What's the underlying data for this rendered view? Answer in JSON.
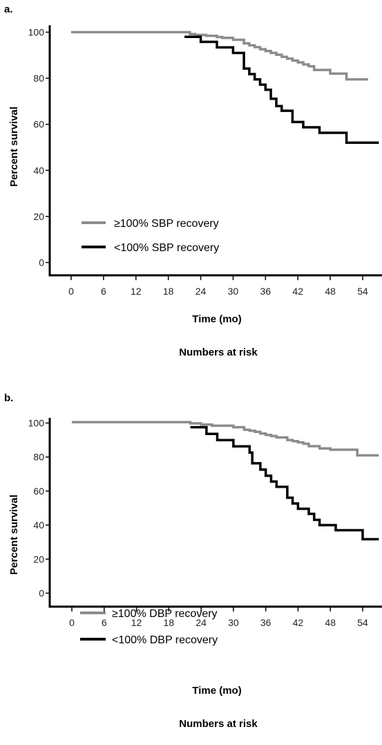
{
  "chart_data": [
    {
      "type": "line",
      "step": true,
      "panel_label": "a.",
      "xlabel": "Time (mo)",
      "ylabel": "Percent survival",
      "footer": "Numbers at risk",
      "xticks": [
        0,
        6,
        12,
        18,
        24,
        30,
        36,
        42,
        48,
        54
      ],
      "yticks": [
        0,
        20,
        40,
        60,
        80,
        100
      ],
      "xlim": [
        -6,
        57
      ],
      "ylim": [
        -5,
        103
      ],
      "grid": false,
      "legend_position": "bottom-left",
      "series": [
        {
          "name": "≥100% SBP recovery",
          "color": "#8c8c8c",
          "x": [
            0,
            22,
            23,
            25,
            27,
            28,
            30,
            32,
            33,
            34,
            35,
            36,
            37,
            38,
            39,
            40,
            41,
            42,
            43,
            44,
            45,
            48,
            51,
            55
          ],
          "y": [
            100,
            99.2,
            98.8,
            98.4,
            97.9,
            97.5,
            96.7,
            95.1,
            94.3,
            93.5,
            92.6,
            91.8,
            91.0,
            90.2,
            89.3,
            88.5,
            87.7,
            86.9,
            86.0,
            85.2,
            83.6,
            82.0,
            79.5,
            79.5
          ]
        },
        {
          "name": "<100% SBP recovery",
          "color": "#000000",
          "x": [
            21,
            22,
            24,
            27,
            30,
            32,
            33,
            34,
            35,
            36,
            37,
            38,
            39,
            40,
            41,
            43,
            44,
            46,
            49,
            51,
            57
          ],
          "y": [
            98,
            98,
            95.8,
            93.4,
            91.0,
            84.2,
            81.8,
            79.5,
            77.2,
            75.0,
            71.1,
            67.9,
            65.9,
            65.9,
            61.0,
            58.7,
            58.7,
            56.3,
            56.3,
            52.0,
            52.0
          ]
        }
      ]
    },
    {
      "type": "line",
      "step": true,
      "panel_label": "b.",
      "xlabel": "Time (mo)",
      "ylabel": "Percent survival",
      "footer": "Numbers at risk",
      "xticks": [
        0,
        6,
        12,
        18,
        24,
        30,
        36,
        42,
        48,
        54
      ],
      "yticks": [
        0,
        20,
        40,
        60,
        80,
        100
      ],
      "xlim": [
        -6,
        57
      ],
      "ylim": [
        -5,
        103
      ],
      "grid": false,
      "legend_position": "bottom-left",
      "series": [
        {
          "name": "≥100% DBP recovery",
          "color": "#8c8c8c",
          "x": [
            0,
            22,
            24,
            26,
            30,
            32,
            33,
            34,
            35,
            36,
            37,
            38,
            40,
            41,
            42,
            43,
            44,
            46,
            48,
            53,
            57
          ],
          "y": [
            100.5,
            99.8,
            99.1,
            98.4,
            97.5,
            96.0,
            95.4,
            94.8,
            93.8,
            93.0,
            92.3,
            91.5,
            90.0,
            89.3,
            88.6,
            87.8,
            86.4,
            85.1,
            84.3,
            81.0,
            81.0
          ]
        },
        {
          "name": "<100% DBP recovery",
          "color": "#000000",
          "x": [
            22,
            23,
            25,
            27,
            30,
            33,
            33.5,
            34,
            35,
            36,
            37,
            38,
            40,
            41,
            42,
            44,
            45,
            46,
            49,
            54,
            57
          ],
          "y": [
            97.5,
            97.5,
            93.6,
            89.9,
            86.3,
            82.6,
            76.3,
            76.3,
            72.6,
            69.0,
            65.6,
            62.5,
            56.1,
            52.7,
            49.6,
            46.6,
            43.1,
            40.0,
            37.0,
            31.7,
            31.7
          ]
        }
      ]
    }
  ]
}
